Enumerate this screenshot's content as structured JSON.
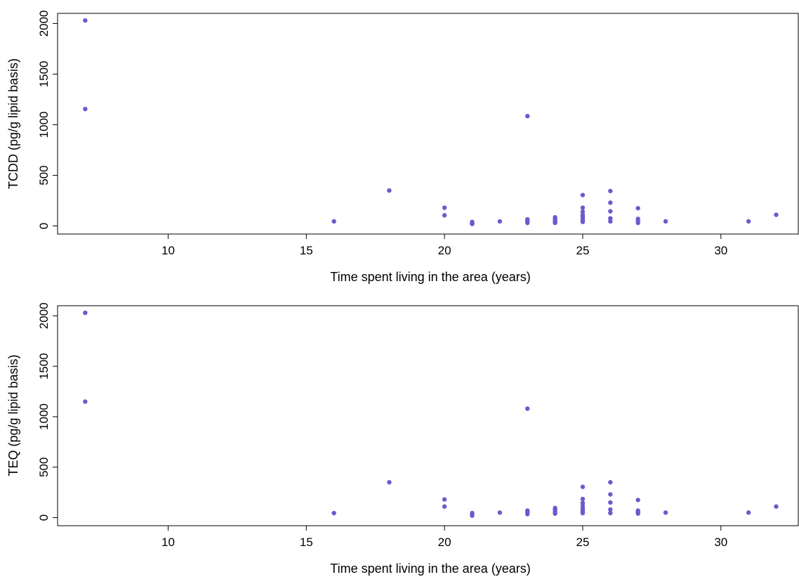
{
  "chart_data": [
    {
      "type": "scatter",
      "xlabel": "Time spent living in the area (years)",
      "ylabel": "TCDD (pg/g lipid basis)",
      "xlim": [
        6,
        32.8
      ],
      "ylim": [
        -80,
        2100
      ],
      "xticks": [
        10,
        15,
        20,
        25,
        30
      ],
      "yticks": [
        0,
        500,
        1000,
        1500,
        2000
      ],
      "grid": false,
      "point_color": "#6a5acd",
      "points": [
        [
          7,
          2030
        ],
        [
          7,
          1155
        ],
        [
          16,
          45
        ],
        [
          18,
          350
        ],
        [
          20,
          180
        ],
        [
          20,
          105
        ],
        [
          21,
          40
        ],
        [
          21,
          30
        ],
        [
          21,
          20
        ],
        [
          22,
          45
        ],
        [
          23,
          1085
        ],
        [
          23,
          65
        ],
        [
          23,
          50
        ],
        [
          23,
          30
        ],
        [
          24,
          85
        ],
        [
          24,
          70
        ],
        [
          24,
          55
        ],
        [
          24,
          40
        ],
        [
          24,
          30
        ],
        [
          25,
          305
        ],
        [
          25,
          180
        ],
        [
          25,
          140
        ],
        [
          25,
          110
        ],
        [
          25,
          90
        ],
        [
          25,
          70
        ],
        [
          25,
          55
        ],
        [
          25,
          40
        ],
        [
          26,
          345
        ],
        [
          26,
          230
        ],
        [
          26,
          145
        ],
        [
          26,
          75
        ],
        [
          26,
          45
        ],
        [
          27,
          175
        ],
        [
          27,
          70
        ],
        [
          27,
          50
        ],
        [
          27,
          30
        ],
        [
          28,
          45
        ],
        [
          31,
          45
        ],
        [
          32,
          110
        ]
      ]
    },
    {
      "type": "scatter",
      "xlabel": "Time spent living in the area (years)",
      "ylabel": "TEQ (pg/g lipid basis)",
      "xlim": [
        6,
        32.8
      ],
      "ylim": [
        -80,
        2100
      ],
      "xticks": [
        10,
        15,
        20,
        25,
        30
      ],
      "yticks": [
        0,
        500,
        1000,
        1500,
        2000
      ],
      "grid": false,
      "point_color": "#6a5acd",
      "points": [
        [
          7,
          2030
        ],
        [
          7,
          1150
        ],
        [
          16,
          45
        ],
        [
          18,
          350
        ],
        [
          20,
          180
        ],
        [
          20,
          110
        ],
        [
          21,
          45
        ],
        [
          21,
          30
        ],
        [
          21,
          20
        ],
        [
          22,
          50
        ],
        [
          23,
          1080
        ],
        [
          23,
          70
        ],
        [
          23,
          55
        ],
        [
          23,
          35
        ],
        [
          24,
          95
        ],
        [
          24,
          80
        ],
        [
          24,
          65
        ],
        [
          24,
          50
        ],
        [
          24,
          40
        ],
        [
          25,
          305
        ],
        [
          25,
          185
        ],
        [
          25,
          145
        ],
        [
          25,
          115
        ],
        [
          25,
          90
        ],
        [
          25,
          75
        ],
        [
          25,
          55
        ],
        [
          25,
          45
        ],
        [
          26,
          350
        ],
        [
          26,
          230
        ],
        [
          26,
          150
        ],
        [
          26,
          80
        ],
        [
          26,
          45
        ],
        [
          27,
          175
        ],
        [
          27,
          70
        ],
        [
          27,
          55
        ],
        [
          27,
          40
        ],
        [
          28,
          50
        ],
        [
          31,
          50
        ],
        [
          32,
          110
        ]
      ]
    }
  ]
}
